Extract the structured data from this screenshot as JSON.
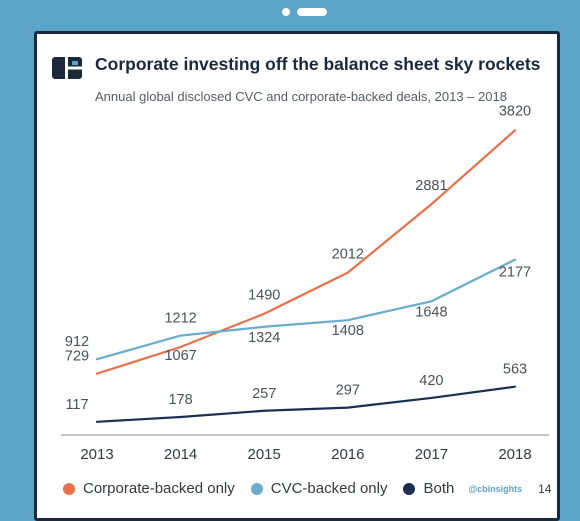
{
  "header": {
    "title": "Corporate investing off the balance sheet sky rockets",
    "subtitle": "Annual global disclosed CVC and corporate-backed deals, 2013 – 2018"
  },
  "footer": {
    "handle": "@cbinsights",
    "page_number": "14"
  },
  "colors": {
    "corporate": "#e8704a",
    "cvc": "#6aaccb",
    "both": "#1b2f52",
    "frame": "#5ba3c7",
    "axis": "#888888"
  },
  "chart_data": {
    "type": "line",
    "title": "Corporate investing off the balance sheet sky rockets",
    "subtitle": "Annual global disclosed CVC and corporate-backed deals, 2013 – 2018",
    "xlabel": "",
    "ylabel": "",
    "x": [
      "2013",
      "2014",
      "2015",
      "2016",
      "2017",
      "2018"
    ],
    "ylim": [
      0,
      3900
    ],
    "grid": false,
    "legend_position": "bottom",
    "series": [
      {
        "name": "Corporate-backed only",
        "color": "#e8704a",
        "values": [
          729,
          1067,
          1490,
          2012,
          2881,
          3820
        ]
      },
      {
        "name": "CVC-backed only",
        "color": "#6aaccb",
        "values": [
          912,
          1212,
          1324,
          1408,
          1648,
          2177
        ]
      },
      {
        "name": "Both",
        "color": "#1b2f52",
        "values": [
          117,
          178,
          257,
          297,
          420,
          563
        ]
      }
    ]
  }
}
